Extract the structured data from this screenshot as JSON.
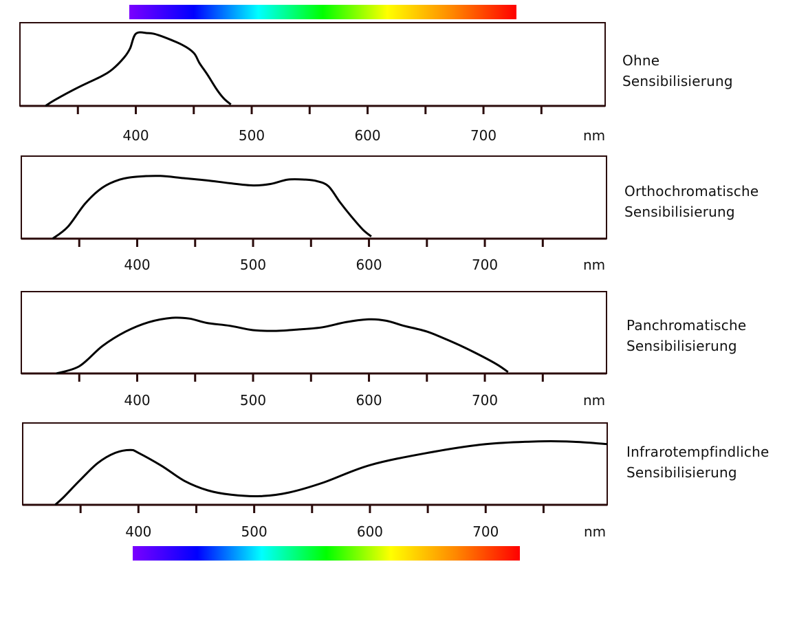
{
  "color_bar": {
    "stops": [
      "#7a00ff",
      "#0000ff",
      "#00ffff",
      "#00ff00",
      "#ffff00",
      "#ff8800",
      "#ff0000"
    ]
  },
  "style": {
    "frame_color": "#2a0a0a",
    "curve_color": "#000000",
    "text_color": "#111111"
  },
  "chart_data": [
    {
      "type": "line",
      "label_lines": [
        "Ohne",
        "Sensibilisierung"
      ],
      "xunit": "nm",
      "xticks": [
        "400",
        "500",
        "600",
        "700"
      ],
      "minor_ticks": [
        350,
        450,
        550,
        650,
        750
      ],
      "xlim": [
        300,
        805
      ],
      "ylim": [
        0,
        1
      ],
      "grid": false,
      "x": [
        322,
        330,
        350,
        370,
        380,
        390,
        395,
        400,
        410,
        420,
        440,
        450,
        455,
        462,
        470,
        476,
        482
      ],
      "y": [
        0,
        0.08,
        0.25,
        0.4,
        0.5,
        0.66,
        0.78,
        0.98,
        0.99,
        0.96,
        0.83,
        0.72,
        0.58,
        0.42,
        0.22,
        0.1,
        0.02
      ]
    },
    {
      "type": "line",
      "label_lines": [
        "Orthochromatische",
        "Sensibilisierung"
      ],
      "xunit": "nm",
      "xticks": [
        "400",
        "500",
        "600",
        "700"
      ],
      "minor_ticks": [
        350,
        450,
        550,
        650,
        750
      ],
      "xlim": [
        300,
        805
      ],
      "ylim": [
        0,
        1
      ],
      "grid": false,
      "x": [
        327,
        340,
        355,
        370,
        385,
        400,
        420,
        440,
        460,
        480,
        500,
        515,
        530,
        545,
        555,
        565,
        575,
        585,
        595,
        602
      ],
      "y": [
        0,
        0.16,
        0.48,
        0.7,
        0.81,
        0.85,
        0.86,
        0.83,
        0.8,
        0.76,
        0.73,
        0.75,
        0.81,
        0.81,
        0.79,
        0.72,
        0.5,
        0.3,
        0.12,
        0.03
      ]
    },
    {
      "type": "line",
      "label_lines": [
        "Panchromatische",
        "Sensibilisierung"
      ],
      "xunit": "nm",
      "xticks": [
        "400",
        "500",
        "600",
        "700"
      ],
      "minor_ticks": [
        350,
        450,
        550,
        650,
        750
      ],
      "xlim": [
        300,
        805
      ],
      "ylim": [
        0,
        1
      ],
      "grid": false,
      "x": [
        330,
        350,
        370,
        390,
        410,
        430,
        445,
        460,
        480,
        500,
        520,
        540,
        560,
        580,
        600,
        615,
        630,
        650,
        670,
        690,
        710,
        720
      ],
      "y": [
        0,
        0.1,
        0.38,
        0.58,
        0.71,
        0.77,
        0.76,
        0.7,
        0.66,
        0.6,
        0.59,
        0.61,
        0.64,
        0.71,
        0.75,
        0.73,
        0.66,
        0.58,
        0.45,
        0.3,
        0.13,
        0.02
      ]
    },
    {
      "type": "line",
      "label_lines": [
        "Infrarotempfindliche",
        "Sensibilisierung"
      ],
      "xunit": "nm",
      "xticks": [
        "400",
        "500",
        "600",
        "700"
      ],
      "minor_ticks": [
        350,
        450,
        550,
        650,
        750
      ],
      "xlim": [
        300,
        805
      ],
      "ylim": [
        0,
        1
      ],
      "grid": false,
      "x": [
        328,
        335,
        350,
        365,
        380,
        393,
        400,
        420,
        440,
        460,
        480,
        505,
        530,
        560,
        600,
        650,
        700,
        750,
        780,
        805
      ],
      "y": [
        0,
        0.1,
        0.35,
        0.58,
        0.72,
        0.76,
        0.72,
        0.54,
        0.33,
        0.2,
        0.14,
        0.12,
        0.17,
        0.31,
        0.55,
        0.72,
        0.84,
        0.88,
        0.87,
        0.84
      ]
    }
  ]
}
